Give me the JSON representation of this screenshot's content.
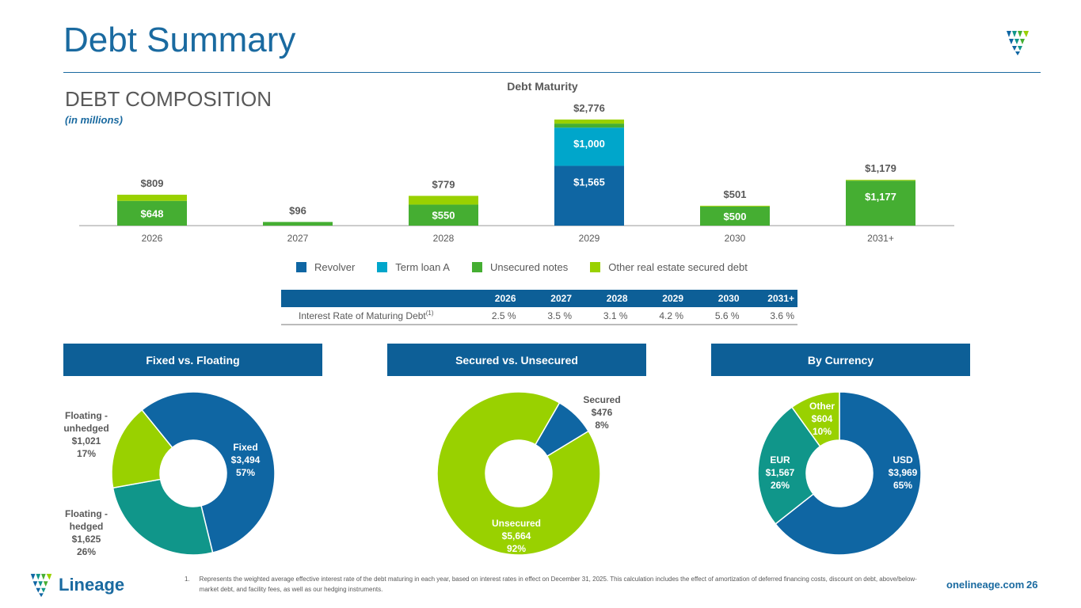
{
  "header": {
    "title": "Debt Summary",
    "section": "DEBT COMPOSITION",
    "units": "(in millions)"
  },
  "colors": {
    "revolver": "#0f66a3",
    "term_loan": "#00a6cb",
    "unsecured": "#45ae32",
    "other": "#99d100",
    "hedged": "#10968a",
    "primary": "#0d5f97"
  },
  "chart_data": [
    {
      "type": "bar",
      "stacked": true,
      "title": "Debt Maturity",
      "categories": [
        "2026",
        "2027",
        "2028",
        "2029",
        "2030",
        "2031+"
      ],
      "series": [
        {
          "name": "Revolver",
          "key": "revolver",
          "values": [
            0,
            0,
            0,
            1565,
            0,
            0
          ]
        },
        {
          "name": "Term loan A",
          "key": "term_loan",
          "values": [
            0,
            0,
            0,
            1000,
            0,
            0
          ]
        },
        {
          "name": "Unsecured notes",
          "key": "unsecured",
          "values": [
            648,
            96,
            550,
            105,
            500,
            1177
          ]
        },
        {
          "name": "Other real estate secured debt",
          "key": "other",
          "values": [
            161,
            0,
            229,
            106,
            1,
            2
          ]
        }
      ],
      "totals": [
        "$809",
        "$96",
        "$779",
        "$2,776",
        "$501",
        "$1,179"
      ],
      "segment_labels": [
        [
          "$648"
        ],
        [],
        [
          "$550"
        ],
        [
          "$1,565",
          "$1,000"
        ],
        [
          "$500"
        ],
        [
          "$1,177"
        ]
      ],
      "legend_position": "bottom"
    },
    {
      "type": "pie",
      "title": "Fixed vs. Floating",
      "slices": [
        {
          "label": "Fixed",
          "value": "$3,494",
          "pct": 57,
          "color": "#0f66a3"
        },
        {
          "label": "Floating - hedged",
          "value": "$1,625",
          "pct": 26,
          "color": "#10968a"
        },
        {
          "label": "Floating - unhedged",
          "value": "$1,021",
          "pct": 17,
          "color": "#99d100"
        }
      ]
    },
    {
      "type": "pie",
      "title": "Secured vs. Unsecured",
      "slices": [
        {
          "label": "Secured",
          "value": "$476",
          "pct": 8,
          "color": "#0f66a3"
        },
        {
          "label": "Unsecured",
          "value": "$5,664",
          "pct": 92,
          "color": "#99d100"
        }
      ]
    },
    {
      "type": "pie",
      "title": "By Currency",
      "slices": [
        {
          "label": "USD",
          "value": "$3,969",
          "pct": 65,
          "color": "#0f66a3"
        },
        {
          "label": "EUR",
          "value": "$1,567",
          "pct": 26,
          "color": "#10968a"
        },
        {
          "label": "Other",
          "value": "$604",
          "pct": 10,
          "color": "#99d100"
        }
      ]
    }
  ],
  "rate_table": {
    "row_label": "Interest Rate of Maturing Debt",
    "footnote_mark": "(1)",
    "years": [
      "2026",
      "2027",
      "2028",
      "2029",
      "2030",
      "2031+"
    ],
    "rates": [
      "2.5 %",
      "3.5 %",
      "3.1 %",
      "4.2 %",
      "5.6 %",
      "3.6 %"
    ]
  },
  "footer": {
    "note_num": "1.",
    "note": "Represents the weighted average effective interest rate of the debt maturing in each year, based on interest rates in effect on December 31, 2025. This calculation includes the effect of amortization of deferred financing costs, discount on debt, above/below-market debt, and facility fees, as well as our hedging instruments.",
    "logo": "Lineage",
    "site": "onelineage.com",
    "page": "26"
  }
}
